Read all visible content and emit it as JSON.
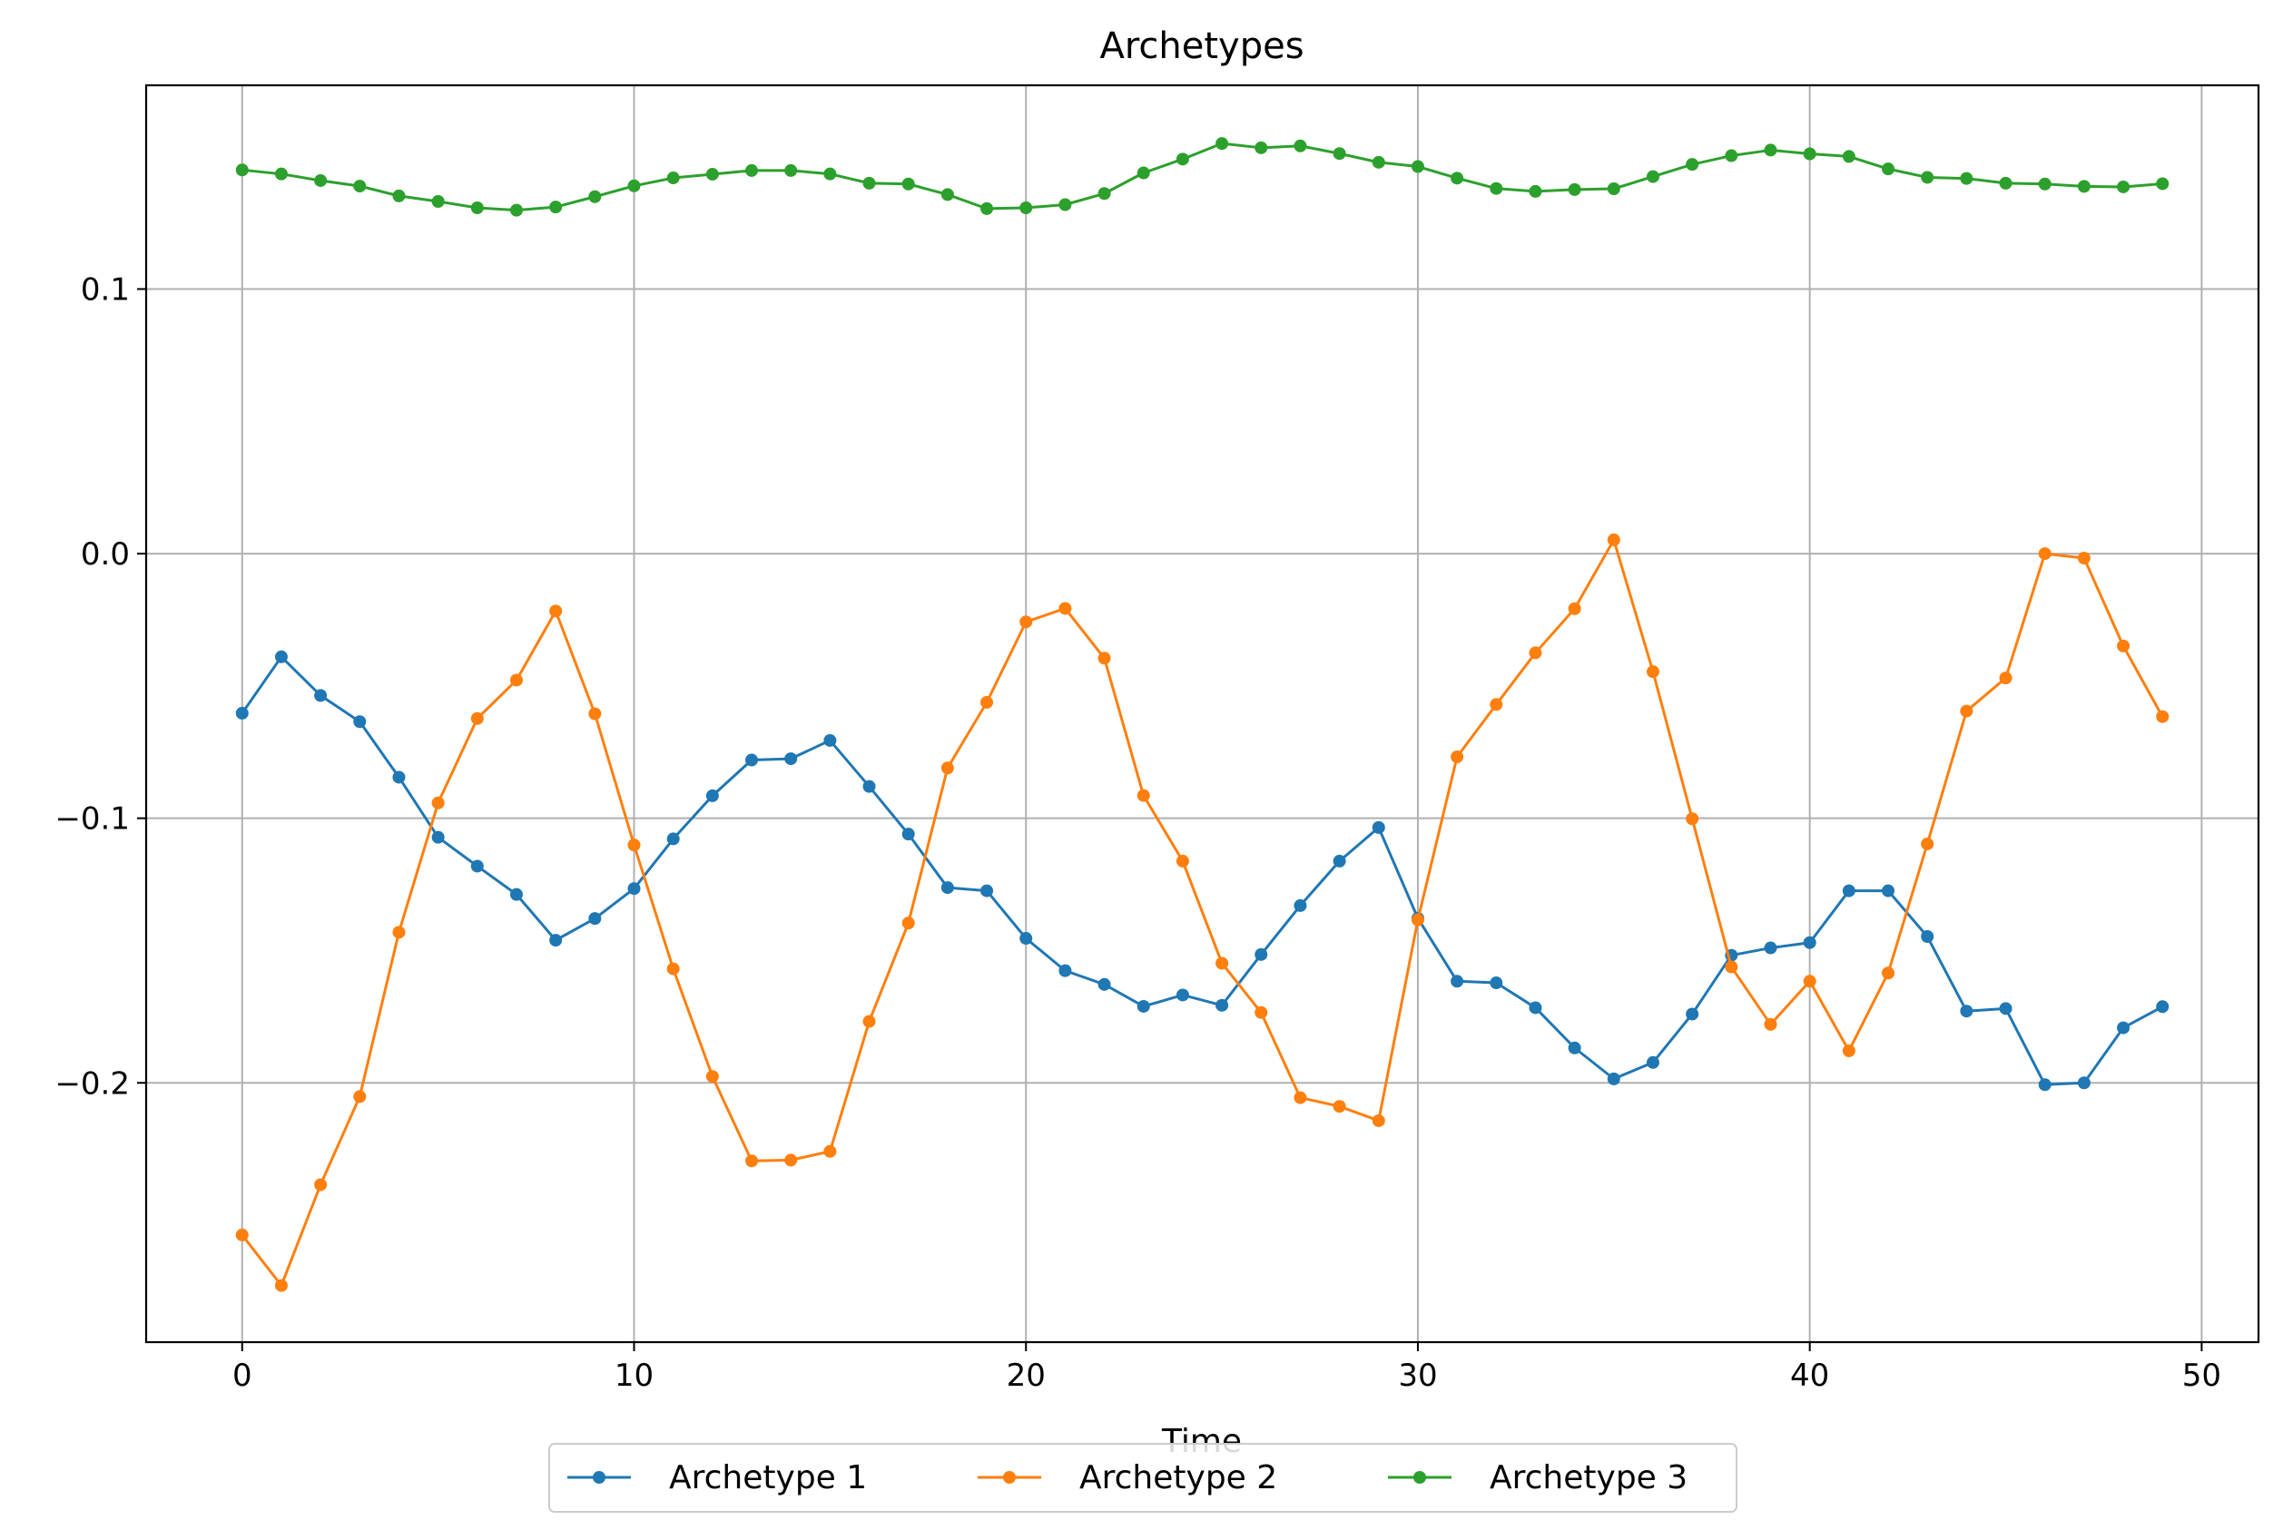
{
  "chart_data": {
    "type": "line",
    "title": "Archetypes",
    "xlabel": "Time",
    "ylabel": "",
    "xlim": [
      -2.45,
      51.45
    ],
    "ylim": [
      -0.298,
      0.177
    ],
    "xticks": [
      0,
      10,
      20,
      30,
      40,
      50
    ],
    "xtick_labels": [
      "0",
      "10",
      "20",
      "30",
      "40",
      "50"
    ],
    "yticks": [
      -0.2,
      -0.1,
      0.0,
      0.1
    ],
    "ytick_labels": [
      "−0.2",
      "−0.1",
      "0.0",
      "0.1"
    ],
    "grid": true,
    "legend_position": "bottom-center, below axes",
    "x": [
      0,
      1,
      2,
      3,
      4,
      5,
      6,
      7,
      8,
      9,
      10,
      11,
      12,
      13,
      14,
      15,
      16,
      17,
      18,
      19,
      20,
      21,
      22,
      23,
      24,
      25,
      26,
      27,
      28,
      29,
      30,
      31,
      32,
      33,
      34,
      35,
      36,
      37,
      38,
      39,
      40,
      41,
      42,
      43,
      44,
      45,
      46,
      47,
      48,
      49
    ],
    "series": [
      {
        "name": "Archetype 1",
        "color": "#1f77b4",
        "values": [
          -0.0603,
          -0.039,
          -0.0536,
          -0.0635,
          -0.0845,
          -0.1072,
          -0.1181,
          -0.1288,
          -0.1461,
          -0.1379,
          -0.1266,
          -0.1078,
          -0.0915,
          -0.078,
          -0.0775,
          -0.0706,
          -0.088,
          -0.106,
          -0.1262,
          -0.1274,
          -0.1454,
          -0.1576,
          -0.1628,
          -0.1711,
          -0.1668,
          -0.1707,
          -0.1515,
          -0.133,
          -0.1162,
          -0.1035,
          -0.1378,
          -0.1616,
          -0.1622,
          -0.1716,
          -0.1868,
          -0.1985,
          -0.1923,
          -0.174,
          -0.1518,
          -0.149,
          -0.147,
          -0.1274,
          -0.1274,
          -0.1447,
          -0.1729,
          -0.1719,
          -0.2007,
          -0.2,
          -0.1792,
          -0.1712
        ]
      },
      {
        "name": "Archetype 2",
        "color": "#ff7f0e",
        "values": [
          -0.2575,
          -0.2766,
          -0.2385,
          -0.2052,
          -0.1431,
          -0.0942,
          -0.0623,
          -0.0478,
          -0.0217,
          -0.0605,
          -0.1101,
          -0.1569,
          -0.1976,
          -0.2295,
          -0.2292,
          -0.2259,
          -0.1768,
          -0.1396,
          -0.081,
          -0.0562,
          -0.0258,
          -0.0207,
          -0.0395,
          -0.0914,
          -0.1162,
          -0.1548,
          -0.1734,
          -0.2056,
          -0.2089,
          -0.2143,
          -0.1384,
          -0.0768,
          -0.057,
          -0.0375,
          -0.0208,
          0.0052,
          -0.0446,
          -0.1002,
          -0.1562,
          -0.1779,
          -0.1616,
          -0.1879,
          -0.1585,
          -0.1097,
          -0.0595,
          -0.047,
          0.0,
          -0.0017,
          -0.0349,
          -0.0616
        ]
      },
      {
        "name": "Archetype 3",
        "color": "#2ca02c",
        "values": [
          0.145,
          0.1435,
          0.141,
          0.1389,
          0.1352,
          0.1331,
          0.1307,
          0.1298,
          0.131,
          0.1349,
          0.139,
          0.142,
          0.1434,
          0.1448,
          0.1448,
          0.1435,
          0.14,
          0.1397,
          0.1357,
          0.1304,
          0.1307,
          0.1319,
          0.1361,
          0.1439,
          0.1491,
          0.155,
          0.1534,
          0.1541,
          0.1512,
          0.1479,
          0.1463,
          0.1419,
          0.138,
          0.1369,
          0.1376,
          0.1379,
          0.1425,
          0.1471,
          0.1504,
          0.1525,
          0.1511,
          0.1501,
          0.1454,
          0.1422,
          0.1418,
          0.14,
          0.1397,
          0.1388,
          0.1386,
          0.1398
        ]
      }
    ]
  }
}
